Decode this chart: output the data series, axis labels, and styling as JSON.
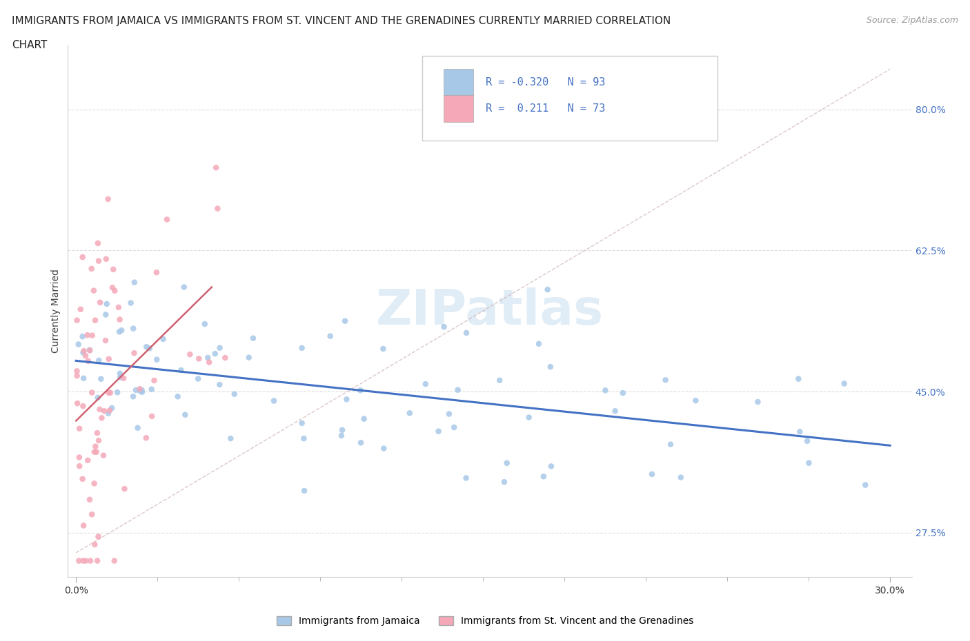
{
  "title_line1": "IMMIGRANTS FROM JAMAICA VS IMMIGRANTS FROM ST. VINCENT AND THE GRENADINES CURRENTLY MARRIED CORRELATION",
  "title_line2": "CHART",
  "source_text": "Source: ZipAtlas.com",
  "ylabel": "Currently Married",
  "ytick_labels": [
    "27.5%",
    "45.0%",
    "62.5%",
    "80.0%"
  ],
  "ytick_vals": [
    0.275,
    0.45,
    0.625,
    0.8
  ],
  "xtick_labels": [
    "0.0%",
    "30.0%"
  ],
  "xtick_vals": [
    0.0,
    0.3
  ],
  "legend_label1": "Immigrants from Jamaica",
  "legend_label2": "Immigrants from St. Vincent and the Grenadines",
  "R1": -0.32,
  "N1": 93,
  "R2": 0.211,
  "N2": 73,
  "color_jamaica": "#a8c8e8",
  "color_svg": "#f4a8b8",
  "trendline_jamaica_color": "#4472c4",
  "trendline_svg_color": "#d06070",
  "diagonal_color": "#d4b0b0",
  "watermark": "ZIPatlas",
  "background_color": "#ffffff"
}
